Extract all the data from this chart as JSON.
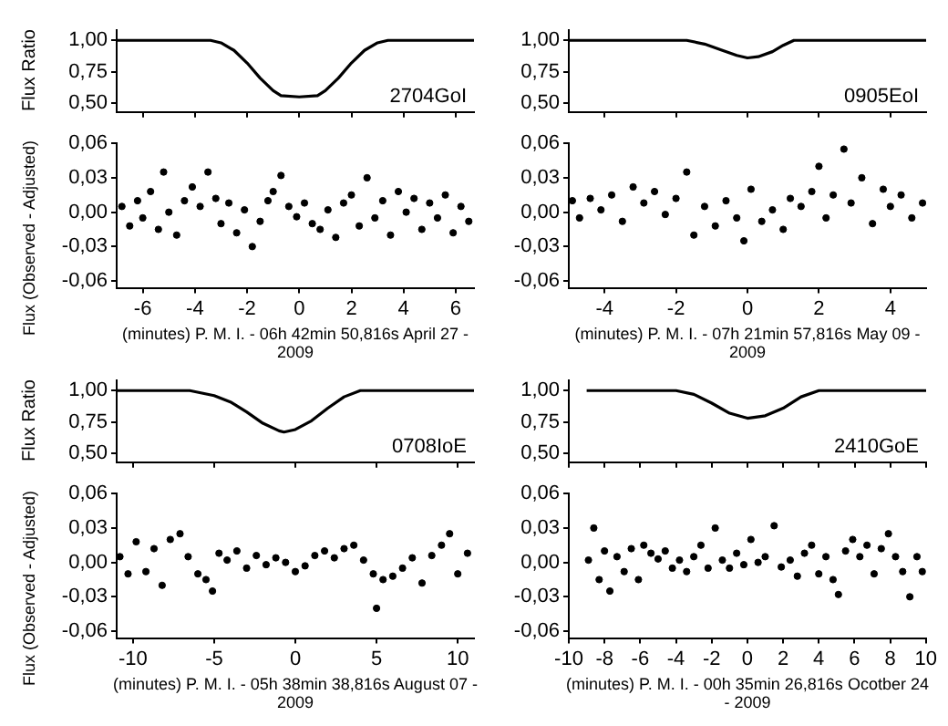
{
  "chart_data": [
    {
      "type": "line",
      "marker": "none",
      "tick_labels": "y",
      "ylabel": "Flux Ratio",
      "annotations": [
        "2704GoI"
      ],
      "xlim": [
        -7,
        6.7
      ],
      "xticks": [
        -6,
        -4,
        -2,
        0,
        2,
        4,
        6
      ],
      "ylim": [
        0.43,
        1.08
      ],
      "yticks": [
        {
          "value": 0.5,
          "label": "0,50"
        },
        {
          "value": 0.75,
          "label": "0,75"
        },
        {
          "value": 1,
          "label": "1,00"
        }
      ],
      "series": [
        {
          "color": "#000000",
          "x": [
            -7,
            -3.4,
            -3,
            -2.5,
            -2,
            -1.5,
            -1,
            -0.7,
            0,
            0.7,
            1,
            1.5,
            2,
            2.5,
            3,
            3.4,
            6.7
          ],
          "values": [
            1,
            1,
            0.98,
            0.92,
            0.82,
            0.7,
            0.6,
            0.56,
            0.55,
            0.56,
            0.6,
            0.7,
            0.82,
            0.92,
            0.98,
            1,
            1
          ]
        }
      ]
    },
    {
      "type": "scatter",
      "marker": "circle",
      "ylabel": "Flux (Observed - Adjusted)",
      "xlabel": "(minutes) P. M. I. - 06h 42min 50,816s April 27 - 2009",
      "xlim": [
        -7,
        6.7
      ],
      "xticks": [
        -6,
        -4,
        -2,
        0,
        2,
        4,
        6
      ],
      "ylim": [
        -0.066,
        0.06
      ],
      "yticks": [
        {
          "value": -0.06,
          "label": "-0,06"
        },
        {
          "value": -0.03,
          "label": "-0,03"
        },
        {
          "value": 0,
          "label": "0,00"
        },
        {
          "value": 0.03,
          "label": "0,03"
        },
        {
          "value": 0.06,
          "label": "0,06"
        }
      ],
      "series": [
        {
          "color": "#000000",
          "x": [
            -6.8,
            -6.5,
            -6.2,
            -6,
            -5.7,
            -5.4,
            -5.2,
            -5,
            -4.7,
            -4.4,
            -4.1,
            -3.8,
            -3.5,
            -3.2,
            -3,
            -2.7,
            -2.4,
            -2.1,
            -1.8,
            -1.5,
            -1.2,
            -1,
            -0.7,
            -0.4,
            -0.1,
            0.2,
            0.5,
            0.8,
            1.1,
            1.4,
            1.7,
            2,
            2.3,
            2.6,
            2.9,
            3.2,
            3.5,
            3.8,
            4.1,
            4.4,
            4.7,
            5,
            5.3,
            5.6,
            5.9,
            6.2,
            6.5
          ],
          "values": [
            0.005,
            -0.012,
            0.01,
            -0.005,
            0.018,
            -0.015,
            0.035,
            0,
            -0.02,
            0.01,
            0.022,
            0.005,
            0.035,
            0.012,
            -0.01,
            0.008,
            -0.018,
            0.002,
            -0.03,
            -0.008,
            0.01,
            0.018,
            0.032,
            0.005,
            -0.004,
            0.008,
            -0.01,
            -0.015,
            0.002,
            -0.022,
            0.008,
            0.015,
            -0.012,
            0.03,
            -0.005,
            0.01,
            -0.02,
            0.018,
            0,
            0.012,
            -0.015,
            0.008,
            -0.005,
            0.015,
            -0.018,
            0.005,
            -0.008
          ]
        }
      ]
    },
    {
      "type": "line",
      "marker": "none",
      "tick_labels": "y",
      "annotations": [
        "0905EoI"
      ],
      "xlim": [
        -5,
        5
      ],
      "xticks": [
        -4,
        -2,
        0,
        2,
        4
      ],
      "ylim": [
        0.43,
        1.08
      ],
      "yticks": [
        {
          "value": 0.5,
          "label": "0,50"
        },
        {
          "value": 0.75,
          "label": "0,75"
        },
        {
          "value": 1,
          "label": "1,00"
        }
      ],
      "series": [
        {
          "color": "#000000",
          "x": [
            -5,
            -1.7,
            -1.2,
            -0.7,
            -0.3,
            0,
            0.3,
            0.7,
            1,
            1.3,
            5
          ],
          "values": [
            1,
            1,
            0.97,
            0.92,
            0.88,
            0.86,
            0.87,
            0.91,
            0.96,
            1,
            1
          ]
        }
      ]
    },
    {
      "type": "scatter",
      "marker": "circle",
      "xlabel": "(minutes) P. M. I. - 07h 21min 57,816s May 09 - 2009",
      "xlim": [
        -5,
        5
      ],
      "xticks": [
        -4,
        -2,
        0,
        2,
        4
      ],
      "ylim": [
        -0.066,
        0.06
      ],
      "yticks": [
        {
          "value": -0.06,
          "label": "-0,06"
        },
        {
          "value": -0.03,
          "label": "-0,03"
        },
        {
          "value": 0,
          "label": "0,00"
        },
        {
          "value": 0.03,
          "label": "0,03"
        },
        {
          "value": 0.06,
          "label": "0,06"
        }
      ],
      "series": [
        {
          "color": "#000000",
          "x": [
            -4.9,
            -4.7,
            -4.4,
            -4.1,
            -3.8,
            -3.5,
            -3.2,
            -2.9,
            -2.6,
            -2.3,
            -2,
            -1.7,
            -1.5,
            -1.2,
            -0.9,
            -0.6,
            -0.3,
            -0.1,
            0.1,
            0.4,
            0.7,
            1,
            1.2,
            1.5,
            1.8,
            2,
            2.2,
            2.4,
            2.7,
            2.9,
            3.2,
            3.5,
            3.8,
            4,
            4.3,
            4.6,
            4.9
          ],
          "values": [
            0.01,
            -0.005,
            0.012,
            0.002,
            0.015,
            -0.008,
            0.022,
            0.008,
            0.018,
            -0.002,
            0.012,
            0.035,
            -0.02,
            0.005,
            -0.012,
            0.01,
            -0.005,
            -0.025,
            0.02,
            -0.008,
            0.002,
            -0.015,
            0.012,
            0.005,
            0.018,
            0.04,
            -0.005,
            0.015,
            0.055,
            0.008,
            0.03,
            -0.01,
            0.02,
            0.005,
            0.015,
            -0.005,
            0.008
          ]
        }
      ]
    },
    {
      "type": "line",
      "marker": "none",
      "tick_labels": "y",
      "ylabel": "Flux Ratio",
      "annotations": [
        "0708IoE"
      ],
      "xlim": [
        -11,
        11
      ],
      "xticks": [
        -10,
        -5,
        0,
        5,
        10
      ],
      "ylim": [
        0.43,
        1.08
      ],
      "yticks": [
        {
          "value": 0.5,
          "label": "0,50"
        },
        {
          "value": 0.75,
          "label": "0,75"
        },
        {
          "value": 1,
          "label": "1,00"
        }
      ],
      "series": [
        {
          "color": "#000000",
          "x": [
            -11,
            -6.5,
            -5,
            -4,
            -3,
            -2,
            -1,
            -0.7,
            0,
            1,
            2,
            3,
            4,
            11
          ],
          "values": [
            1,
            1,
            0.96,
            0.91,
            0.83,
            0.74,
            0.68,
            0.67,
            0.69,
            0.76,
            0.86,
            0.95,
            1,
            1
          ]
        }
      ]
    },
    {
      "type": "scatter",
      "marker": "circle",
      "ylabel": "Flux (Observed - Adjusted)",
      "xlabel": "(minutes) P. M. I. - 05h 38min 38,816s August 07 - 2009",
      "xlim": [
        -11,
        11
      ],
      "xticks": [
        -10,
        -5,
        0,
        5,
        10
      ],
      "ylim": [
        -0.066,
        0.06
      ],
      "yticks": [
        {
          "value": -0.06,
          "label": "-0,06"
        },
        {
          "value": -0.03,
          "label": "-0,03"
        },
        {
          "value": 0,
          "label": "0,00"
        },
        {
          "value": 0.03,
          "label": "0,03"
        },
        {
          "value": 0.06,
          "label": "0,06"
        }
      ],
      "series": [
        {
          "color": "#000000",
          "x": [
            -10.8,
            -10.3,
            -9.8,
            -9.2,
            -8.7,
            -8.2,
            -7.7,
            -7.1,
            -6.6,
            -6,
            -5.5,
            -5.1,
            -4.7,
            -4.2,
            -3.6,
            -3,
            -2.4,
            -1.8,
            -1.2,
            -0.6,
            0,
            0.6,
            1.2,
            1.8,
            2.4,
            3,
            3.6,
            4.2,
            4.8,
            5,
            5.4,
            6,
            6.6,
            7.2,
            7.8,
            8.4,
            9,
            9.5,
            10,
            10.6
          ],
          "values": [
            0.005,
            -0.01,
            0.018,
            -0.008,
            0.012,
            -0.02,
            0.02,
            0.025,
            0.005,
            -0.01,
            -0.015,
            -0.025,
            0.008,
            0.002,
            0.01,
            -0.005,
            0.006,
            -0.002,
            0.004,
            0,
            -0.008,
            -0.003,
            0.006,
            0.01,
            0.004,
            0.012,
            0.015,
            0.002,
            -0.01,
            -0.04,
            -0.015,
            -0.012,
            -0.005,
            0.004,
            -0.018,
            0.006,
            0.015,
            0.025,
            -0.01,
            0.008
          ]
        }
      ]
    },
    {
      "type": "line",
      "marker": "none",
      "tick_labels": "y",
      "annotations": [
        "2410GoE"
      ],
      "xlim": [
        -10,
        10
      ],
      "xticks": [
        -10,
        -8,
        -6,
        -4,
        -2,
        0,
        2,
        4,
        6,
        8,
        10
      ],
      "ylim": [
        0.43,
        1.08
      ],
      "yticks": [
        {
          "value": 0.5,
          "label": "0,50"
        },
        {
          "value": 0.75,
          "label": "0,75"
        },
        {
          "value": 1,
          "label": "1,00"
        }
      ],
      "series": [
        {
          "color": "#000000",
          "x": [
            -9,
            -4,
            -3,
            -2,
            -1,
            0,
            1,
            2,
            3,
            4,
            10
          ],
          "values": [
            1,
            1,
            0.97,
            0.9,
            0.82,
            0.78,
            0.8,
            0.86,
            0.95,
            1,
            1
          ]
        }
      ]
    },
    {
      "type": "scatter",
      "marker": "circle",
      "xlabel": "(minutes) P. M. I. - 00h 35min 26,816s Ocotber 24 - 2009",
      "xlim": [
        -10,
        10
      ],
      "xticks": [
        -10,
        -8,
        -6,
        -4,
        -2,
        0,
        2,
        4,
        6,
        8,
        10
      ],
      "ylim": [
        -0.066,
        0.06
      ],
      "yticks": [
        {
          "value": -0.06,
          "label": "-0,06"
        },
        {
          "value": -0.03,
          "label": "-0,03"
        },
        {
          "value": 0,
          "label": "0,00"
        },
        {
          "value": 0.03,
          "label": "0,03"
        },
        {
          "value": 0.06,
          "label": "0,06"
        }
      ],
      "series": [
        {
          "color": "#000000",
          "x": [
            -8.9,
            -8.6,
            -8.3,
            -8,
            -7.7,
            -7.3,
            -6.9,
            -6.5,
            -6.1,
            -5.8,
            -5.4,
            -5,
            -4.6,
            -4.2,
            -3.8,
            -3.4,
            -3,
            -2.6,
            -2.2,
            -1.8,
            -1.4,
            -1,
            -0.6,
            -0.2,
            0.2,
            0.6,
            1,
            1.5,
            1.9,
            2.4,
            2.8,
            3.2,
            3.6,
            4,
            4.4,
            4.8,
            5.1,
            5.5,
            5.9,
            6.3,
            6.7,
            7.1,
            7.5,
            7.9,
            8.3,
            8.7,
            9.1,
            9.5,
            9.8
          ],
          "values": [
            0.002,
            0.03,
            -0.015,
            0.01,
            -0.025,
            0.005,
            -0.008,
            0.012,
            -0.015,
            0.015,
            0.008,
            0.003,
            0.01,
            -0.005,
            0.002,
            -0.008,
            0.005,
            0.015,
            -0.005,
            0.03,
            0.002,
            -0.005,
            0.008,
            -0.002,
            0.02,
            0,
            0.005,
            0.032,
            -0.004,
            0.002,
            -0.012,
            0.008,
            0.015,
            -0.01,
            0.005,
            -0.015,
            -0.028,
            0.01,
            0.02,
            0.005,
            0.015,
            -0.01,
            0.012,
            0.025,
            0.005,
            -0.008,
            -0.03,
            0.005,
            -0.008
          ]
        }
      ]
    }
  ]
}
